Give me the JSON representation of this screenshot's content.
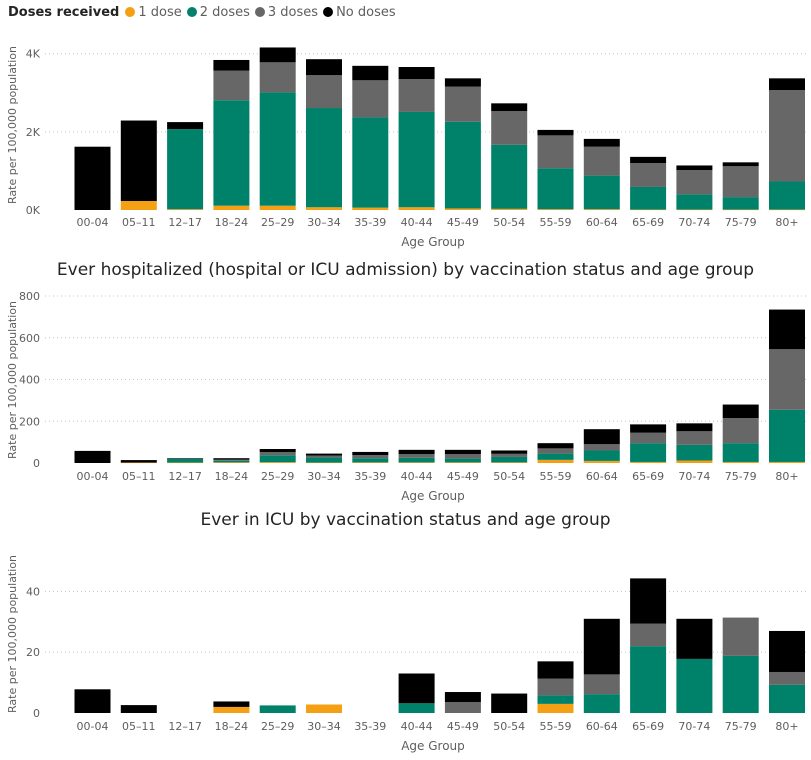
{
  "legend": {
    "title": "Doses received",
    "items": [
      {
        "label": "1 dose",
        "color": "#f5a014"
      },
      {
        "label": "2 doses",
        "color": "#00826a"
      },
      {
        "label": "3 doses",
        "color": "#676767"
      },
      {
        "label": "No doses",
        "color": "#000000"
      }
    ]
  },
  "chart_data": [
    {
      "type": "bar",
      "stacked": true,
      "title": "",
      "xlabel": "Age Group",
      "ylabel": "Rate per 100,000 population",
      "ylim": [
        0,
        4300
      ],
      "yticks": [
        {
          "value": 0,
          "label": "0K"
        },
        {
          "value": 2000,
          "label": "2K"
        },
        {
          "value": 4000,
          "label": "4K"
        }
      ],
      "grid": true,
      "categories": [
        "00-04",
        "05–11",
        "12–17",
        "18–24",
        "25–29",
        "30–34",
        "35-39",
        "40-44",
        "45-49",
        "50-54",
        "55-59",
        "60-64",
        "65-69",
        "70-74",
        "75-79",
        "80+"
      ],
      "series": [
        {
          "name": "1 dose",
          "color": "#f5a014",
          "values": [
            0,
            230,
            20,
            110,
            110,
            70,
            60,
            70,
            40,
            30,
            20,
            20,
            10,
            10,
            10,
            10
          ]
        },
        {
          "name": "2 doses",
          "color": "#00826a",
          "values": [
            0,
            0,
            2050,
            2700,
            2900,
            2540,
            2310,
            2440,
            2220,
            1640,
            1050,
            860,
            580,
            390,
            320,
            720
          ]
        },
        {
          "name": "3 doses",
          "color": "#676767",
          "values": [
            0,
            0,
            0,
            760,
            770,
            840,
            950,
            840,
            900,
            860,
            840,
            740,
            610,
            620,
            790,
            2340
          ]
        },
        {
          "name": "No doses",
          "color": "#000000",
          "values": [
            1620,
            2060,
            180,
            270,
            380,
            410,
            370,
            310,
            210,
            200,
            140,
            200,
            160,
            120,
            100,
            300
          ]
        }
      ]
    },
    {
      "type": "bar",
      "stacked": true,
      "title": "Ever hospitalized (hospital or ICU admission) by vaccination status and age group",
      "xlabel": "Age Group",
      "ylabel": "Rate per 100,000 population",
      "ylim": [
        0,
        800
      ],
      "yticks": [
        {
          "value": 0,
          "label": "0"
        },
        {
          "value": 200,
          "label": "200"
        },
        {
          "value": 400,
          "label": "400"
        },
        {
          "value": 600,
          "label": "600"
        },
        {
          "value": 800,
          "label": "800"
        }
      ],
      "grid": true,
      "categories": [
        "00-04",
        "05–11",
        "12–17",
        "18–24",
        "25–29",
        "30–34",
        "35-39",
        "40-44",
        "45-49",
        "50-54",
        "55-59",
        "60-64",
        "65-69",
        "70-74",
        "75-79",
        "80+"
      ],
      "series": [
        {
          "name": "1 dose",
          "color": "#f5a014",
          "values": [
            0,
            2,
            2,
            3,
            4,
            2,
            3,
            3,
            3,
            3,
            15,
            10,
            5,
            12,
            5,
            5
          ]
        },
        {
          "name": "2 doses",
          "color": "#00826a",
          "values": [
            0,
            0,
            18,
            8,
            33,
            24,
            20,
            22,
            18,
            26,
            30,
            50,
            90,
            75,
            90,
            250
          ]
        },
        {
          "name": "3 doses",
          "color": "#676767",
          "values": [
            0,
            0,
            0,
            5,
            15,
            10,
            15,
            18,
            22,
            15,
            25,
            30,
            50,
            65,
            120,
            290
          ]
        },
        {
          "name": "No doses",
          "color": "#000000",
          "values": [
            58,
            12,
            3,
            7,
            15,
            9,
            15,
            20,
            20,
            16,
            25,
            72,
            40,
            38,
            65,
            190
          ]
        }
      ]
    },
    {
      "type": "bar",
      "stacked": true,
      "title": "Ever in ICU by vaccination status and age group",
      "xlabel": "Age Group",
      "ylabel": "Rate per 100,000 population",
      "ylim": [
        0,
        52
      ],
      "yticks": [
        {
          "value": 0,
          "label": "0"
        },
        {
          "value": 20,
          "label": "20"
        },
        {
          "value": 40,
          "label": "40"
        }
      ],
      "grid": true,
      "categories": [
        "00-04",
        "05–11",
        "12–17",
        "18–24",
        "25–29",
        "30–34",
        "35-39",
        "40-44",
        "45-49",
        "50-54",
        "55-59",
        "60-64",
        "65-69",
        "70-74",
        "75-79",
        "80+"
      ],
      "series": [
        {
          "name": "1 dose",
          "color": "#f5a014",
          "values": [
            0,
            0,
            0,
            2,
            0,
            2.8,
            0,
            0,
            0,
            0,
            3,
            0,
            0,
            0,
            0,
            0
          ]
        },
        {
          "name": "2 doses",
          "color": "#00826a",
          "values": [
            0,
            0,
            0,
            0,
            2.5,
            0,
            0,
            3.2,
            0,
            0,
            2.8,
            6.2,
            22,
            17.8,
            18.8,
            9.3
          ]
        },
        {
          "name": "3 doses",
          "color": "#676767",
          "values": [
            0,
            0,
            0,
            0,
            0,
            0,
            0,
            0,
            3.6,
            0,
            5.5,
            6.5,
            7.4,
            0,
            12.6,
            4.2
          ]
        },
        {
          "name": "No doses",
          "color": "#000000",
          "values": [
            7.8,
            2.6,
            0,
            1.8,
            0,
            0,
            0,
            9.8,
            3.3,
            6.4,
            5.7,
            18.3,
            14.9,
            13.2,
            0,
            13.5
          ]
        }
      ]
    }
  ]
}
